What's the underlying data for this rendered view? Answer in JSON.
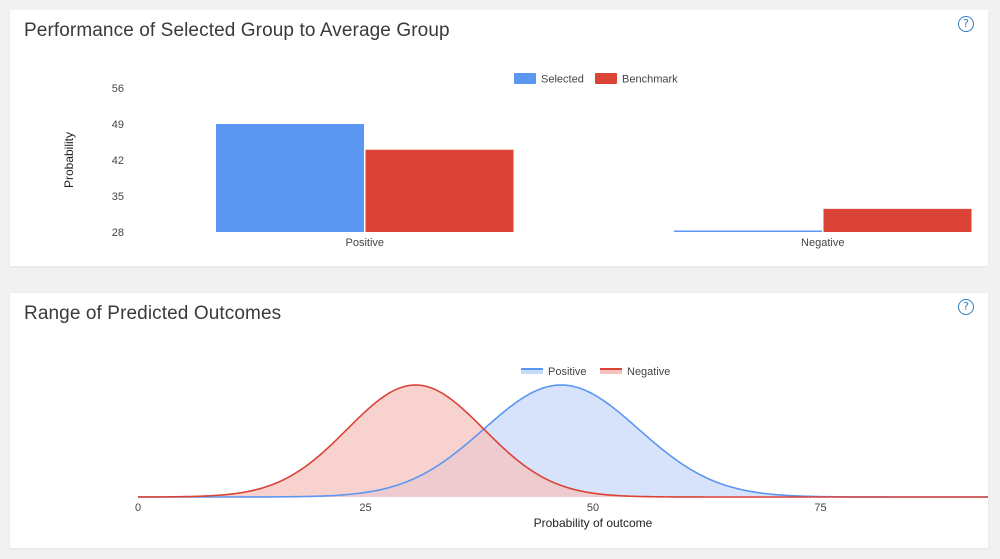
{
  "help_glyph": "?",
  "chart_data": [
    {
      "type": "bar",
      "title": "Performance of Selected Group to Average Group",
      "xlabel": "",
      "ylabel": "Probability",
      "categories": [
        "Positive",
        "Negative"
      ],
      "series": [
        {
          "name": "Selected",
          "values": [
            49,
            28.2
          ],
          "color": "#5c96f3"
        },
        {
          "name": "Benchmark",
          "values": [
            44,
            32.5
          ],
          "color": "#db4336"
        }
      ],
      "ylim": [
        28,
        56
      ],
      "yticks": [
        "28",
        "35",
        "42",
        "49",
        "56"
      ],
      "grid": false,
      "legend": "top-center"
    },
    {
      "type": "area",
      "title": "Range of Predicted Outcomes",
      "xlabel": "Probability of outcome",
      "ylabel": "",
      "xlim": [
        0,
        95
      ],
      "xticks": [
        "0",
        "25",
        "50",
        "75"
      ],
      "series": [
        {
          "name": "Positive",
          "mean": 46.5,
          "sd": 8.5,
          "color": "#5c96f3",
          "fill": "#c8dafa"
        },
        {
          "name": "Negative",
          "mean": 30.5,
          "sd": 7.5,
          "color": "#db4336",
          "fill": "#f4c3bf"
        }
      ],
      "grid": false,
      "legend": "top-center"
    }
  ]
}
